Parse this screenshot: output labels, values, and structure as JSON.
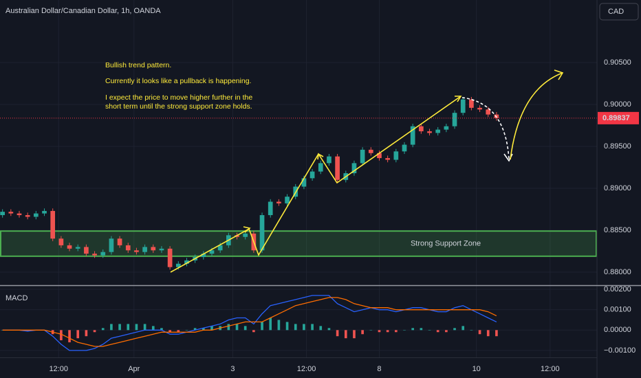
{
  "header": {
    "title": "Australian Dollar/Canadian Dollar, 1h, OANDA",
    "currency": "CAD"
  },
  "chart_data": [
    {
      "type": "candlestick",
      "up_color": "#26a69a",
      "down_color": "#ef5350",
      "last_price_color": "#f23645",
      "open": [
        0.8868,
        0.8872,
        0.887,
        0.8868,
        0.8866,
        0.887,
        0.8873,
        0.884,
        0.8832,
        0.8828,
        0.883,
        0.8822,
        0.882,
        0.8824,
        0.884,
        0.8832,
        0.8826,
        0.8824,
        0.883,
        0.8826,
        0.8828,
        0.8806,
        0.881,
        0.8814,
        0.8818,
        0.8822,
        0.8826,
        0.8832,
        0.8844,
        0.8842,
        0.8846,
        0.8826,
        0.8868,
        0.8884,
        0.8882,
        0.889,
        0.8902,
        0.8912,
        0.892,
        0.893,
        0.8938,
        0.891,
        0.8918,
        0.893,
        0.8946,
        0.8942,
        0.8936,
        0.8934,
        0.8944,
        0.8952,
        0.8974,
        0.8968,
        0.8966,
        0.897,
        0.8974,
        0.899,
        0.9006,
        0.8996,
        0.8994,
        0.8988
      ],
      "high": [
        0.8875,
        0.8875,
        0.8873,
        0.8871,
        0.8873,
        0.8876,
        0.8876,
        0.8843,
        0.8835,
        0.8833,
        0.8833,
        0.8825,
        0.8827,
        0.8843,
        0.8843,
        0.8835,
        0.8829,
        0.8833,
        0.8833,
        0.8831,
        0.8831,
        0.8813,
        0.8817,
        0.8821,
        0.8825,
        0.8829,
        0.8835,
        0.8847,
        0.8847,
        0.8849,
        0.8849,
        0.8871,
        0.8887,
        0.8887,
        0.8893,
        0.8905,
        0.8915,
        0.8923,
        0.8933,
        0.8941,
        0.8941,
        0.8921,
        0.8933,
        0.8949,
        0.8949,
        0.8945,
        0.8939,
        0.8947,
        0.8955,
        0.8977,
        0.8977,
        0.8971,
        0.8973,
        0.8977,
        0.8993,
        0.9009,
        0.9009,
        0.8999,
        0.8997,
        0.8991
      ],
      "low": [
        0.8865,
        0.8867,
        0.8865,
        0.8863,
        0.8863,
        0.8867,
        0.8837,
        0.8829,
        0.8825,
        0.8825,
        0.8819,
        0.8817,
        0.8817,
        0.8821,
        0.8829,
        0.8823,
        0.8821,
        0.8821,
        0.8823,
        0.8823,
        0.8803,
        0.8803,
        0.8807,
        0.8811,
        0.8815,
        0.8819,
        0.8823,
        0.8829,
        0.8839,
        0.8839,
        0.8823,
        0.8823,
        0.8865,
        0.8879,
        0.8879,
        0.8887,
        0.8899,
        0.8909,
        0.8917,
        0.8927,
        0.8907,
        0.8907,
        0.8915,
        0.8927,
        0.8939,
        0.8933,
        0.8931,
        0.8931,
        0.8941,
        0.8949,
        0.8965,
        0.8963,
        0.8963,
        0.8967,
        0.8971,
        0.8987,
        0.8993,
        0.8991,
        0.8985,
        0.89807
      ],
      "close": [
        0.8872,
        0.887,
        0.8868,
        0.8866,
        0.887,
        0.8873,
        0.884,
        0.8832,
        0.8828,
        0.883,
        0.8822,
        0.882,
        0.8824,
        0.884,
        0.8832,
        0.8826,
        0.8824,
        0.883,
        0.8826,
        0.8828,
        0.8806,
        0.881,
        0.8814,
        0.8818,
        0.8822,
        0.8826,
        0.8832,
        0.8844,
        0.8842,
        0.8846,
        0.8826,
        0.8868,
        0.8884,
        0.8882,
        0.889,
        0.8902,
        0.8912,
        0.892,
        0.893,
        0.8938,
        0.891,
        0.8918,
        0.893,
        0.8946,
        0.8942,
        0.8936,
        0.8934,
        0.8944,
        0.8952,
        0.8974,
        0.8968,
        0.8966,
        0.897,
        0.8974,
        0.899,
        0.9006,
        0.8996,
        0.8994,
        0.8988,
        0.89837
      ],
      "ylim": [
        0.87844,
        0.91246
      ],
      "yticks": [
        {
          "value": 0.88,
          "label": "0.88000"
        },
        {
          "value": 0.885,
          "label": "0.88500"
        },
        {
          "value": 0.89,
          "label": "0.89000"
        },
        {
          "value": 0.895,
          "label": "0.89500"
        },
        {
          "value": 0.9,
          "label": "0.90000"
        },
        {
          "value": 0.905,
          "label": "0.90500"
        }
      ],
      "zone": {
        "label": "Strong Support Zone",
        "top": 0.8849,
        "bottom": 0.8819
      },
      "annotations": [
        "Bullish trend pattern.",
        "Currently it looks like a pullback is happening.",
        "I expect the price to move higher further in the",
        "short term until the strong support zone holds."
      ]
    },
    {
      "type": "macd",
      "title": "MACD",
      "xlim": [
        -0.3,
        71
      ],
      "xticks": [
        {
          "value": 6.7,
          "label": "12:00"
        },
        {
          "value": 15.7,
          "label": "Apr"
        },
        {
          "value": 27.5,
          "label": "3"
        },
        {
          "value": 36.3,
          "label": "12:00"
        },
        {
          "value": 45,
          "label": "8"
        },
        {
          "value": 56.6,
          "label": "10"
        },
        {
          "value": 65.4,
          "label": "12:00"
        }
      ],
      "ylim": [
        -0.00134,
        0.00217
      ],
      "yticks": [
        {
          "value": 0.002,
          "label": "0.00200"
        },
        {
          "value": 0.001,
          "label": "0.00100"
        },
        {
          "value": 0,
          "label": "0.00000"
        },
        {
          "value": -0.001,
          "label": "−0.00100"
        }
      ],
      "macd_line": {
        "color": "#2962ff",
        "values": [
          0,
          0,
          0,
          -5e-05,
          0,
          0,
          -0.0003,
          -0.0007,
          -0.001,
          -0.001,
          -0.001,
          -0.0009,
          -0.0007,
          -0.0004,
          -0.0003,
          -0.0002,
          -0.0001,
          0,
          0,
          0,
          -0.0002,
          -0.0002,
          -0.0001,
          0,
          0.0001,
          0.0002,
          0.0003,
          0.0005,
          0.0006,
          0.0006,
          0.0003,
          0.0008,
          0.0012,
          0.0013,
          0.0014,
          0.0015,
          0.0016,
          0.0017,
          0.0017,
          0.0017,
          0.0013,
          0.0011,
          0.0009,
          0.001,
          0.0011,
          0.001,
          0.001,
          0.0009,
          0.001,
          0.0011,
          0.0011,
          0.001,
          0.0009,
          0.0009,
          0.0011,
          0.0012,
          0.001,
          0.0008,
          0.0006,
          0.0004
        ]
      },
      "signal_line": {
        "color": "#ff6d00",
        "values": [
          0,
          0,
          0,
          0,
          0,
          0,
          -0.0001,
          -0.0002,
          -0.0004,
          -0.0006,
          -0.0007,
          -0.0008,
          -0.0008,
          -0.0007,
          -0.0006,
          -0.0005,
          -0.0004,
          -0.0003,
          -0.0002,
          -0.0001,
          -0.0001,
          -0.0001,
          -0.0001,
          -0.0001,
          0,
          0,
          0.0001,
          0.0002,
          0.0003,
          0.0004,
          0.0004,
          0.0004,
          0.0006,
          0.0008,
          0.001,
          0.0012,
          0.0013,
          0.0014,
          0.0015,
          0.0016,
          0.0016,
          0.0015,
          0.0013,
          0.0012,
          0.0011,
          0.0011,
          0.0011,
          0.001,
          0.001,
          0.001,
          0.001,
          0.001,
          0.001,
          0.001,
          0.001,
          0.001,
          0.001,
          0.001,
          0.0009,
          0.0007
        ]
      },
      "histogram": {
        "up_color": "#26a69a",
        "down_color": "#ef5350",
        "values": [
          0,
          0,
          0,
          -5e-05,
          0,
          0,
          -0.0002,
          -0.0005,
          -0.0006,
          -0.0004,
          -0.0003,
          -0.0001,
          0.0001,
          0.0003,
          0.0003,
          0.0003,
          0.0003,
          0.0003,
          0.0002,
          0.0001,
          -0.0001,
          -0.0001,
          0,
          0.0001,
          0.0001,
          0.0002,
          0.0002,
          0.0003,
          0.0003,
          0.0002,
          -0.0001,
          0.0004,
          0.0006,
          0.0005,
          0.0004,
          0.0003,
          0.0003,
          0.0003,
          0.0002,
          0.0001,
          -0.0003,
          -0.0004,
          -0.0004,
          -0.0002,
          0,
          -0.0001,
          -0.0001,
          -0.0001,
          0,
          0.0001,
          0.0001,
          0,
          -0.0001,
          -0.0001,
          0.0001,
          0.0002,
          0,
          -0.0002,
          -0.0003,
          -0.0003
        ]
      }
    }
  ]
}
